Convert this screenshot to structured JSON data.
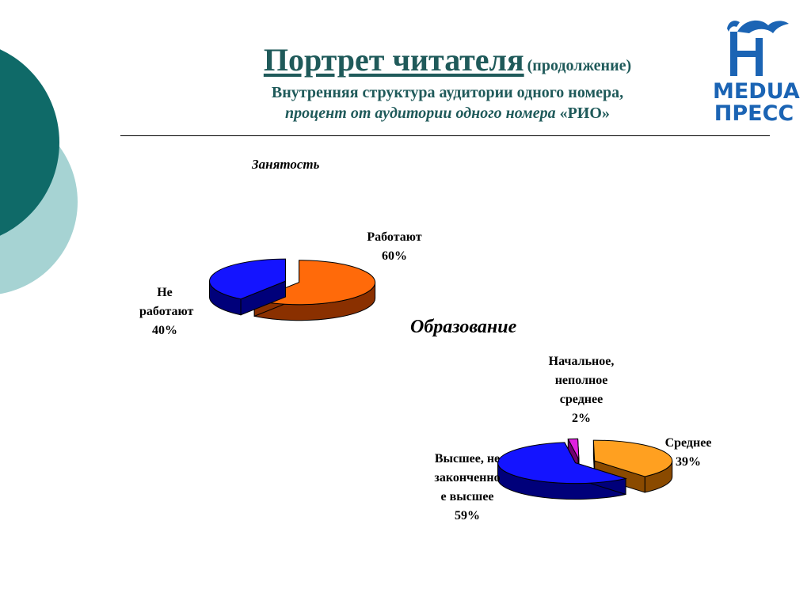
{
  "header": {
    "title": "Портрет читателя",
    "title_note": "(продолжение)",
    "subtitle_line1": "Внутренняя структура аудитории одного номера,",
    "subtitle_line2": "процент от аудитории одного номера",
    "subtitle_rio": "«РИО»"
  },
  "logo": {
    "line1": "MEDUA",
    "line2": "ПРЕСС",
    "color": "#1b64b4"
  },
  "colors": {
    "teal_dark": "#0f6a68",
    "teal_light": "#a6d3d3",
    "title": "#1f5a5a"
  },
  "chart_data": [
    {
      "type": "pie",
      "title": "Занятость",
      "slices": [
        {
          "label": "Работают",
          "value": 60,
          "value_label": "60%",
          "color": "#ff6a0a",
          "side_color": "#8a3000"
        },
        {
          "label": "Не работают",
          "value": 40,
          "value_label": "40%",
          "color": "#1414ff",
          "side_color": "#00007a"
        }
      ]
    },
    {
      "type": "pie",
      "title": "Образование",
      "slices": [
        {
          "label": "Начальное, неполное среднее",
          "value": 2,
          "value_label": "2%",
          "color": "#e020e0",
          "side_color": "#700070"
        },
        {
          "label": "Среднее",
          "value": 39,
          "value_label": "39%",
          "color": "#ffa020",
          "side_color": "#8a4a00"
        },
        {
          "label": "Высшее, незаконченное высшее",
          "value": 59,
          "value_label": "59%",
          "color": "#1414ff",
          "side_color": "#00007a"
        }
      ]
    }
  ]
}
